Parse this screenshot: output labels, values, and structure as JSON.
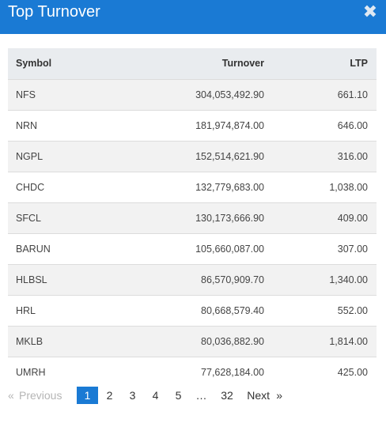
{
  "modal": {
    "title": "Top Turnover",
    "close_symbol": "✖",
    "close_icon": "close-icon"
  },
  "table": {
    "headers": {
      "symbol": "Symbol",
      "turnover": "Turnover",
      "ltp": "LTP"
    },
    "rows": [
      {
        "symbol": "NFS",
        "turnover": "304,053,492.90",
        "ltp": "661.10"
      },
      {
        "symbol": "NRN",
        "turnover": "181,974,874.00",
        "ltp": "646.00"
      },
      {
        "symbol": "NGPL",
        "turnover": "152,514,621.90",
        "ltp": "316.00"
      },
      {
        "symbol": "CHDC",
        "turnover": "132,779,683.00",
        "ltp": "1,038.00"
      },
      {
        "symbol": "SFCL",
        "turnover": "130,173,666.90",
        "ltp": "409.00"
      },
      {
        "symbol": "BARUN",
        "turnover": "105,660,087.00",
        "ltp": "307.00"
      },
      {
        "symbol": "HLBSL",
        "turnover": "86,570,909.70",
        "ltp": "1,340.00"
      },
      {
        "symbol": "HRL",
        "turnover": "80,668,579.40",
        "ltp": "552.00"
      },
      {
        "symbol": "MKLB",
        "turnover": "80,036,882.90",
        "ltp": "1,814.00"
      },
      {
        "symbol": "UMRH",
        "turnover": "77,628,184.00",
        "ltp": "425.00"
      }
    ]
  },
  "pagination": {
    "prev_arrow": "«",
    "prev_label": "Previous",
    "pages": [
      "1",
      "2",
      "3",
      "4",
      "5"
    ],
    "current_page": "1",
    "ellipsis": "…",
    "last_page": "32",
    "next_label": "Next",
    "next_arrow": "»"
  },
  "colors": {
    "header_bg": "#1a7ad4",
    "table_head_bg": "#e9ecef",
    "row_stripe": "#f2f2f2",
    "active_page": "#1a7ad4",
    "disabled_text": "#b5b5b5"
  }
}
